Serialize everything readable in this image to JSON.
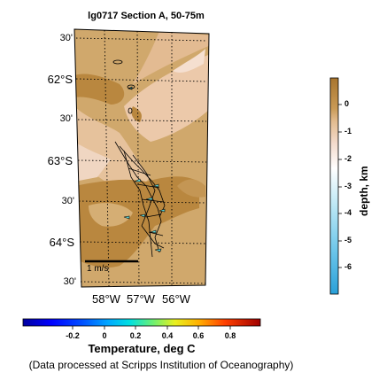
{
  "title": "lg0717 Section A, 50-75m",
  "latitude_labels": [
    "30'",
    "62°S",
    "30'",
    "63°S",
    "30'",
    "64°S",
    "30'"
  ],
  "longitude_labels": [
    "58°W",
    "57°W",
    "56°W"
  ],
  "scale_bar_label": "1 m/s",
  "depth_colorbar": {
    "label": "depth, km",
    "ticks": [
      "0",
      "-1",
      "-2",
      "-3",
      "-4",
      "-5",
      "-6"
    ],
    "colors": {
      "shallow": "#b8843a",
      "mid": "#f2d6c0",
      "deep": "#2aa3d6"
    }
  },
  "temperature_colorbar": {
    "label": "Temperature, deg C",
    "ticks": [
      "-0.2",
      "0",
      "0.2",
      "0.4",
      "0.6",
      "0.8"
    ],
    "colors": [
      "#0000b0",
      "#0000ff",
      "#0060ff",
      "#00c0ff",
      "#30e0c0",
      "#90f070",
      "#e0f030",
      "#ffc000",
      "#ff6000",
      "#e00000",
      "#b00000"
    ]
  },
  "credit": "(Data processed at Scripps Institution of Oceanography)"
}
